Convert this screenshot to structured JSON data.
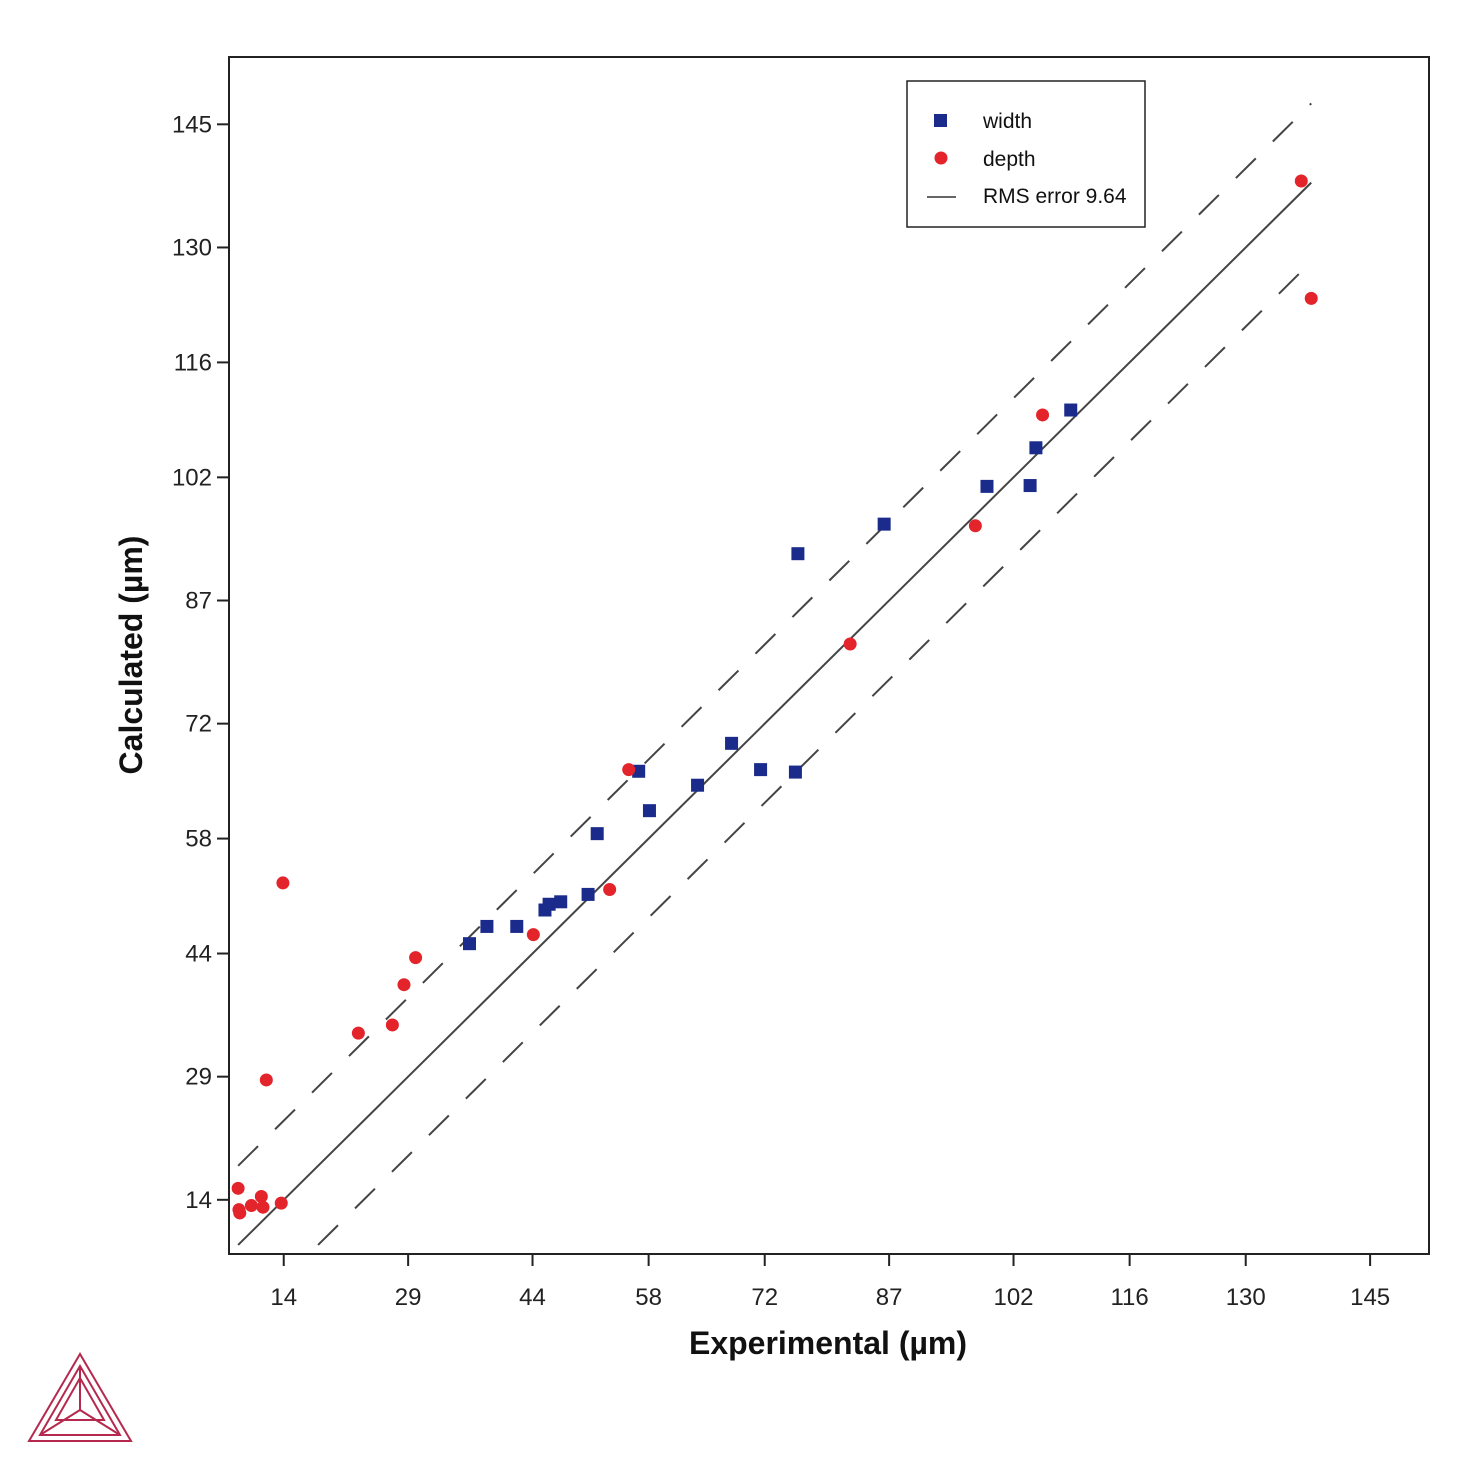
{
  "chart_data": {
    "type": "scatter",
    "xlabel": "Experimental (µm)",
    "ylabel": "Calculated (µm)",
    "xlim": [
      7.4,
      152.1
    ],
    "ylim": [
      7.4,
      153.2
    ],
    "x_ticks": [
      14,
      29,
      44,
      58,
      72,
      87,
      102,
      116,
      130,
      145
    ],
    "y_ticks": [
      14,
      29,
      44,
      58,
      72,
      87,
      102,
      116,
      130,
      145
    ],
    "x_tick_labels": [
      "14",
      "29",
      "44",
      "58",
      "72",
      "87",
      "102",
      "116",
      "130",
      "145"
    ],
    "y_tick_labels": [
      "14",
      "29",
      "44",
      "58",
      "72",
      "87",
      "102",
      "116",
      "130",
      "145"
    ],
    "grid": false,
    "legend_position": "top-right",
    "series": [
      {
        "name": "width",
        "marker": "square",
        "color": "#1a2b8c",
        "points": [
          [
            36.4,
            45.2
          ],
          [
            38.5,
            47.3
          ],
          [
            42.1,
            47.3
          ],
          [
            45.5,
            49.3
          ],
          [
            46.0,
            50.0
          ],
          [
            47.4,
            50.3
          ],
          [
            50.7,
            51.2
          ],
          [
            51.8,
            58.6
          ],
          [
            56.8,
            66.2
          ],
          [
            58.1,
            61.4
          ],
          [
            63.9,
            64.5
          ],
          [
            68.0,
            69.6
          ],
          [
            71.5,
            66.4
          ],
          [
            75.7,
            66.1
          ],
          [
            76.0,
            92.7
          ],
          [
            86.4,
            96.3
          ],
          [
            98.8,
            100.9
          ],
          [
            104.0,
            101.0
          ],
          [
            104.7,
            105.6
          ],
          [
            108.9,
            110.2
          ]
        ]
      },
      {
        "name": "depth",
        "marker": "circle",
        "color": "#e3242b",
        "points": [
          [
            8.5,
            15.4
          ],
          [
            8.6,
            12.8
          ],
          [
            8.7,
            12.4
          ],
          [
            10.1,
            13.3
          ],
          [
            11.3,
            14.4
          ],
          [
            11.5,
            13.1
          ],
          [
            11.9,
            28.6
          ],
          [
            13.7,
            13.6
          ],
          [
            13.9,
            52.6
          ],
          [
            23.0,
            34.3
          ],
          [
            27.1,
            35.3
          ],
          [
            28.5,
            40.2
          ],
          [
            29.9,
            43.5
          ],
          [
            44.1,
            46.3
          ],
          [
            53.3,
            51.8
          ],
          [
            55.6,
            66.4
          ],
          [
            82.3,
            81.7
          ],
          [
            97.4,
            96.1
          ],
          [
            105.5,
            109.6
          ],
          [
            136.7,
            138.1
          ],
          [
            137.9,
            123.8
          ]
        ]
      }
    ],
    "reference_lines": {
      "name": "RMS error 9.64",
      "rms_error": 9.64,
      "x_range": [
        8.5,
        137.9
      ]
    }
  }
}
